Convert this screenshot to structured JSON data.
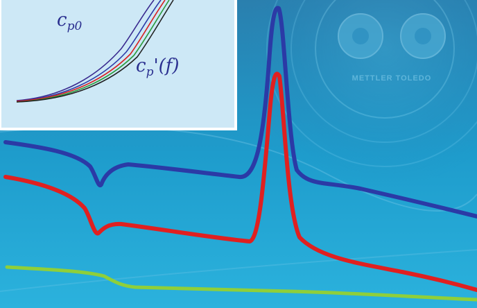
{
  "colors": {
    "background": "#1f8fc0",
    "inset_background": "#cde8f6",
    "curve_blue": "#2b3aa6",
    "curve_red": "#e02020",
    "curve_green": "#8fcf3a"
  },
  "inset": {
    "label_cp0_base": "c",
    "label_cp0_sub": "p0",
    "label_cpf_base": "c",
    "label_cpf_sub": "p",
    "label_cpf_tail": "'(f)"
  },
  "watermark": {
    "text": "METTLER TOLEDO"
  }
}
